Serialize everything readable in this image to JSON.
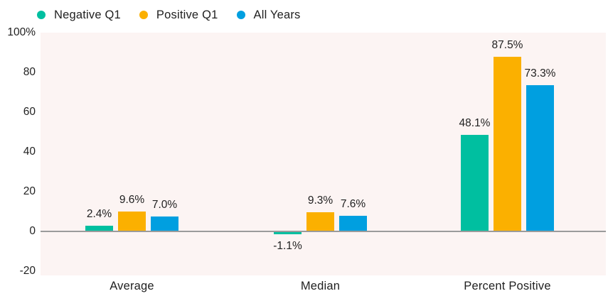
{
  "chart_data": {
    "type": "bar",
    "title": "",
    "xlabel": "",
    "ylabel": "",
    "categories": [
      "Average",
      "Median",
      "Percent Positive"
    ],
    "series": [
      {
        "name": "Negative Q1",
        "color": "#00BFA0",
        "values": [
          2.4,
          -1.1,
          48.1
        ],
        "labels": [
          "2.4%",
          "-1.1%",
          "48.1%"
        ]
      },
      {
        "name": "Positive Q1",
        "color": "#FBB000",
        "values": [
          9.6,
          9.3,
          87.5
        ],
        "labels": [
          "9.6%",
          "9.3%",
          "87.5%"
        ]
      },
      {
        "name": "All Years",
        "color": "#009FE0",
        "values": [
          7.0,
          7.6,
          73.3
        ],
        "labels": [
          "7.0%",
          "7.6%",
          "73.3%"
        ]
      }
    ],
    "y_ticks": [
      {
        "value": 100,
        "label": "100%"
      },
      {
        "value": 80,
        "label": "80"
      },
      {
        "value": 60,
        "label": "60"
      },
      {
        "value": 40,
        "label": "40"
      },
      {
        "value": 20,
        "label": "20"
      },
      {
        "value": 0,
        "label": "0"
      },
      {
        "value": -20,
        "label": "-20"
      }
    ],
    "ylim": [
      -22,
      100
    ],
    "grid": false,
    "legend_position": "top",
    "colors": {
      "plot_bg": "#FCF4F3",
      "axis_line": "#9B9B9B",
      "text": "#222222",
      "page_bg": "#FFFFFF"
    }
  }
}
